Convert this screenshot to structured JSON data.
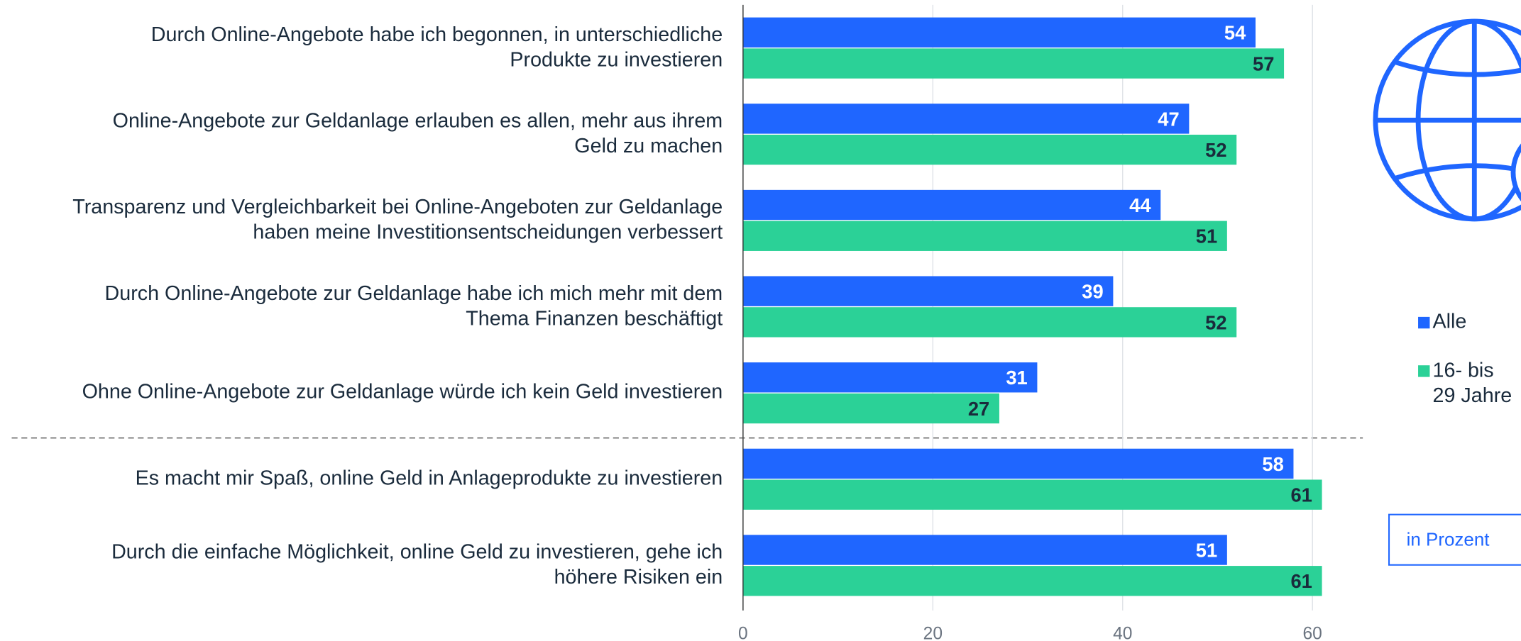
{
  "chart_data": {
    "type": "bar",
    "orientation": "horizontal",
    "categories": [
      "Durch Online-Angebote habe ich begonnen, in unterschiedliche\nProdukte zu investieren",
      "Online-Angebote zur Geldanlage erlauben es allen, mehr aus ihrem\nGeld zu machen",
      "Transparenz und Vergleichbarkeit bei Online-Angeboten zur Geldanlage\nhaben meine Investitionsentscheidungen verbessert",
      "Durch Online-Angebote zur Geldanlage habe ich mich mehr mit dem\nThema Finanzen beschäftigt",
      "Ohne Online-Angebote zur Geldanlage würde ich kein Geld investieren",
      "Es macht mir Spaß, online Geld in Anlageprodukte zu investieren",
      "Durch die einfache Möglichkeit, online Geld zu investieren, gehe ich\nhöhere Risiken ein"
    ],
    "series": [
      {
        "name": "Alle",
        "color": "#1f66ff",
        "values": [
          54,
          47,
          44,
          39,
          31,
          58,
          51
        ]
      },
      {
        "name": "16- bis\n29 Jahre",
        "color": "#2bd197",
        "values": [
          57,
          52,
          51,
          52,
          27,
          61,
          61
        ]
      }
    ],
    "xlim": [
      0,
      65
    ],
    "xticks": [
      0,
      20,
      40,
      60
    ],
    "grid": true,
    "note": "in Prozent"
  }
}
